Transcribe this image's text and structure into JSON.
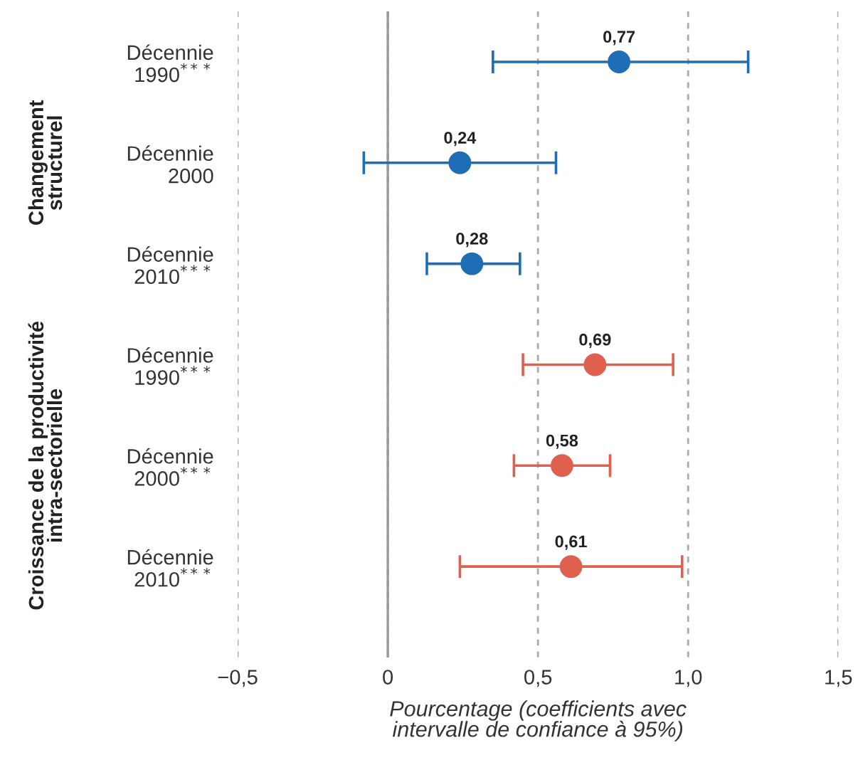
{
  "chart_data": {
    "type": "scatter",
    "orientation": "horizontal",
    "categories": [
      "Décennie\n1990$^{***}$",
      "Décennie\n2000",
      "Décennie\n2010$^{***}$",
      "Décennie\n1990$^{***}$",
      "Décennie\n2000$^{***}$",
      "Décennie\n2010$^{***}$"
    ],
    "series": [
      {
        "color": "#1f6db5",
        "values": [
          0.77,
          0.24,
          0.28,
          null,
          null,
          null
        ],
        "errors": [
          [
            0.35,
            1.2
          ],
          [
            -0.08,
            0.56
          ],
          [
            0.13,
            0.44
          ],
          null,
          null,
          null
        ],
        "value_labels": [
          "0,77",
          "0,24",
          "0,28",
          null,
          null,
          null
        ]
      },
      {
        "color": "#e0604f",
        "values": [
          null,
          null,
          null,
          0.69,
          0.58,
          0.61
        ],
        "errors": [
          null,
          null,
          null,
          [
            0.45,
            0.95
          ],
          [
            0.42,
            0.74
          ],
          [
            0.24,
            0.98
          ]
        ],
        "value_labels": [
          null,
          null,
          null,
          "0,69",
          "0,58",
          "0,61"
        ]
      }
    ],
    "xlabel": "Pourcentage (coefficients avec\nintervalle de confiance à 95%)",
    "annotations": [
      "Changement\nstructurel",
      "Croissance de la productivité\nintra-sectorielle"
    ],
    "xlim": [
      -0.5,
      1.5
    ],
    "xticks": [
      {
        "value": -0.5,
        "label": "−0,5"
      },
      0,
      {
        "value": 0.5,
        "label": "0,5"
      },
      {
        "value": 1.0,
        "label": "1,0"
      },
      {
        "value": 1.5,
        "label": "1,5"
      }
    ],
    "ref_lines": [
      {
        "axis": "x",
        "value": 0,
        "color": "#999999",
        "line_style": "solid"
      }
    ],
    "grid": "x",
    "marker": "circle",
    "legend": false
  }
}
